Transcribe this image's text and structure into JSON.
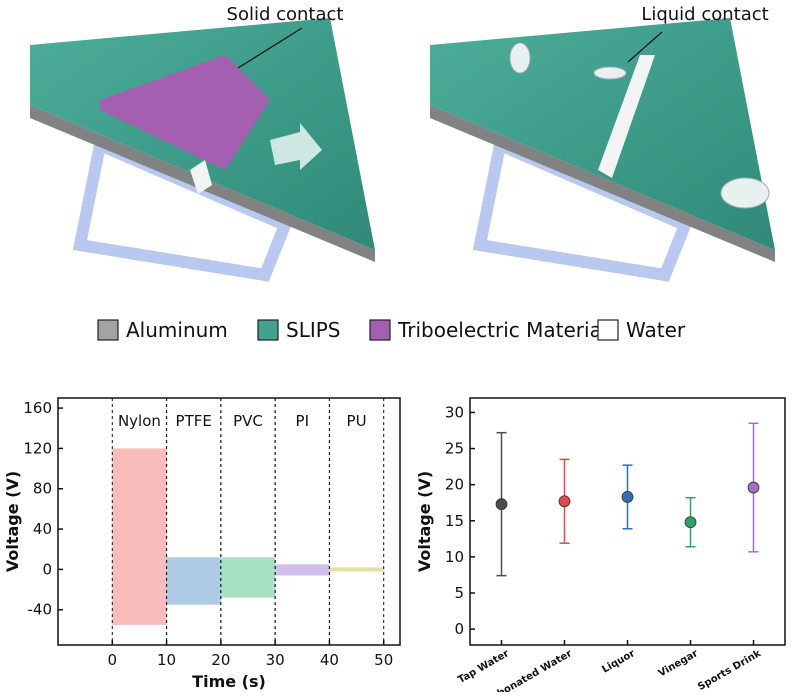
{
  "illustration": {
    "labels": [
      "Solid contact",
      "Liquid contact"
    ],
    "legend": [
      {
        "name": "Aluminum",
        "color": "#a0a4a2"
      },
      {
        "name": "SLIPS",
        "color": "#3fa390"
      },
      {
        "name": "Triboelectric Material",
        "color": "#a45fb0"
      },
      {
        "name": "Water",
        "color": "#ffffff"
      }
    ]
  },
  "chart_data": [
    {
      "type": "band",
      "xlabel": "Time (s)",
      "ylabel": "Voltage (V)",
      "xlim": [
        -10,
        53
      ],
      "xticks": [
        0,
        10,
        20,
        30,
        40,
        50
      ],
      "ylim": [
        -75,
        170
      ],
      "yticks": [
        -40,
        0,
        40,
        80,
        120,
        160
      ],
      "series": [
        {
          "name": "Nylon",
          "color": "#f26b6b",
          "x": [
            0,
            10
          ],
          "min": -55,
          "max": 120
        },
        {
          "name": "PTFE",
          "color": "#4a8fc4",
          "x": [
            10,
            20
          ],
          "min": -35,
          "max": 12
        },
        {
          "name": "PVC",
          "color": "#3fbf7f",
          "x": [
            20,
            30
          ],
          "min": -28,
          "max": 12
        },
        {
          "name": "PI",
          "color": "#9a6fd0",
          "x": [
            30,
            40
          ],
          "min": -6,
          "max": 5
        },
        {
          "name": "PU",
          "color": "#c9b830",
          "x": [
            40,
            50
          ],
          "min": -2,
          "max": 2
        }
      ]
    },
    {
      "type": "errorbar",
      "ylabel": "Voltage (V)",
      "categories": [
        "Tap Water",
        "Carbonated Water",
        "Liquor",
        "Vinegar",
        "Sports Drink"
      ],
      "values": [
        17.3,
        17.7,
        18.3,
        14.8,
        19.6
      ],
      "errors": [
        9.9,
        5.8,
        4.4,
        3.4,
        8.9
      ],
      "colors": [
        "#4d4d4d",
        "#e0474c",
        "#2f6fb5",
        "#2ca36b",
        "#a070c8"
      ],
      "ylim": [
        -2.2,
        32
      ],
      "yticks": [
        0,
        5,
        10,
        15,
        20,
        25,
        30
      ]
    }
  ]
}
